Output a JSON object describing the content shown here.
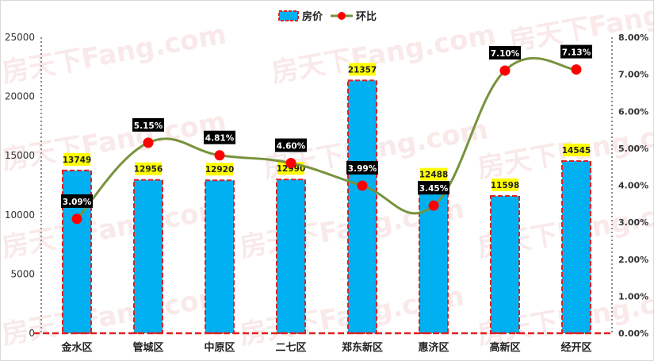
{
  "watermark": "房天下Fang.com",
  "chart_data": {
    "type": "bar+line",
    "categories": [
      "金水区",
      "管城区",
      "中原区",
      "二七区",
      "郑东新区",
      "惠济区",
      "高新区",
      "经开区"
    ],
    "series": [
      {
        "name": "房价",
        "type": "bar",
        "axis": "left",
        "values": [
          13749,
          12956,
          12920,
          12990,
          21357,
          12488,
          11598,
          14545
        ],
        "labels": [
          "13749",
          "12956",
          "12920",
          "12990",
          "21357",
          "12488",
          "11598",
          "14545"
        ],
        "color": "#00b0f0",
        "border_color": "#e02020"
      },
      {
        "name": "环比",
        "type": "line",
        "axis": "right",
        "values": [
          3.09,
          5.15,
          4.81,
          4.6,
          3.99,
          3.45,
          7.1,
          7.13
        ],
        "labels": [
          "3.09%",
          "5.15%",
          "4.81%",
          "4.60%",
          "3.99%",
          "3.45%",
          "7.10%",
          "7.13%"
        ],
        "line_color": "#77933c",
        "marker_color": "#ff0000"
      }
    ],
    "y_left": {
      "min": 0,
      "max": 25000,
      "ticks": [
        "0",
        "5000",
        "10000",
        "15000",
        "20000",
        "25000"
      ]
    },
    "y_right": {
      "min": 0,
      "max": 8,
      "ticks": [
        "0.00%",
        "1.00%",
        "2.00%",
        "3.00%",
        "4.00%",
        "5.00%",
        "6.00%",
        "7.00%",
        "8.00%"
      ]
    },
    "legend_position": "top-center",
    "grid": false
  }
}
